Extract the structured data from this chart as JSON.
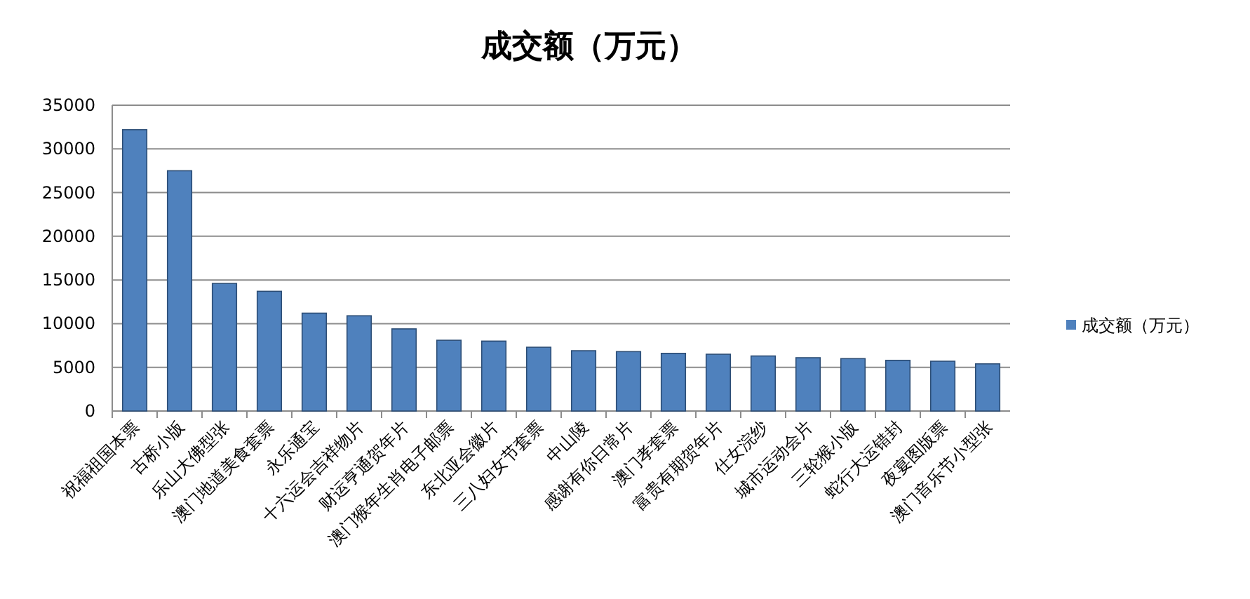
{
  "chart_data": {
    "type": "bar",
    "title": "成交额（万元）",
    "categories": [
      "祝福祖国本票",
      "古桥小版",
      "乐山大佛型张",
      "澳门地道美食套票",
      "永乐通宝",
      "十六运会吉祥物片",
      "财运亨通贺年片",
      "澳门猴年生肖电子邮票",
      "东北亚会徽片",
      "三八妇女节套票",
      "中山陵",
      "感谢有你日常片",
      "澳门孝套票",
      "富贵有期贺年片",
      "仕女浣纱",
      "城市运动会片",
      "三轮猴小版",
      "蛇行大运错封",
      "夜宴图版票",
      "澳门音乐节小型张"
    ],
    "series": [
      {
        "name": "成交额（万元）",
        "color": "#4f81bd",
        "values": [
          32200,
          27500,
          14600,
          13700,
          11200,
          10900,
          9400,
          8100,
          8000,
          7300,
          6900,
          6800,
          6600,
          6500,
          6300,
          6100,
          6000,
          5800,
          5700,
          5400
        ]
      }
    ],
    "ylim": [
      0,
      35000
    ],
    "yticks": [
      0,
      5000,
      10000,
      15000,
      20000,
      25000,
      30000,
      35000
    ],
    "grid": "y",
    "legend": "right"
  }
}
